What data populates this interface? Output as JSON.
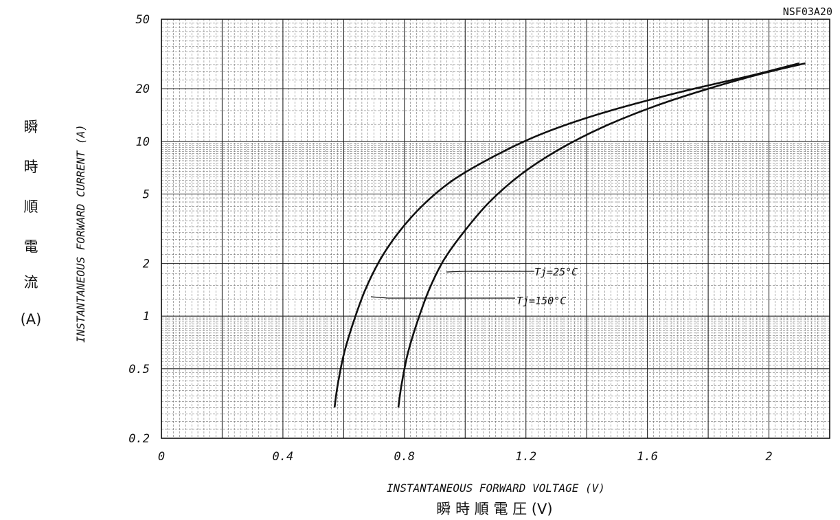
{
  "chart_data": {
    "type": "line",
    "part_number": "NSF03A20",
    "xlabel": "INSTANTANEOUS FORWARD VOLTAGE (V)",
    "xlabel_jp": "瞬 時 順 電 圧 (V)",
    "ylabel": "INSTANTANEOUS FORWARD CURRENT (A)",
    "ylabel_jp": [
      "瞬",
      "時",
      "順",
      "電",
      "流",
      "(A)"
    ],
    "x_scale": "linear",
    "y_scale": "log",
    "xlim": [
      0,
      2.2
    ],
    "ylim": [
      0.2,
      50
    ],
    "x_ticks": [
      "0",
      "0.4",
      "0.8",
      "1.2",
      "1.6",
      "2"
    ],
    "y_ticks": [
      "50",
      "20",
      "10",
      "5",
      "2",
      "1",
      "0.5",
      "0.2"
    ],
    "grid": true,
    "series": [
      {
        "name": "Tj=150°C",
        "x": [
          0.57,
          0.58,
          0.6,
          0.63,
          0.67,
          0.72,
          0.78,
          0.86,
          0.96,
          1.1,
          1.25,
          1.45,
          1.7,
          1.95,
          2.1
        ],
        "y": [
          0.3,
          0.4,
          0.6,
          0.9,
          1.4,
          2.1,
          3.0,
          4.3,
          6.0,
          8.3,
          11.0,
          14.5,
          19.0,
          24.0,
          28.0
        ]
      },
      {
        "name": "Tj=25°C",
        "x": [
          0.78,
          0.79,
          0.81,
          0.84,
          0.88,
          0.93,
          1.0,
          1.08,
          1.18,
          1.3,
          1.45,
          1.62,
          1.8,
          1.98,
          2.12
        ],
        "y": [
          0.3,
          0.4,
          0.6,
          0.9,
          1.4,
          2.1,
          3.1,
          4.5,
          6.4,
          8.8,
          12.0,
          15.8,
          20.0,
          24.5,
          28.0
        ]
      }
    ],
    "annotations": [
      {
        "text": "Tj=25°C"
      },
      {
        "text": "Tj=150°C"
      }
    ]
  }
}
